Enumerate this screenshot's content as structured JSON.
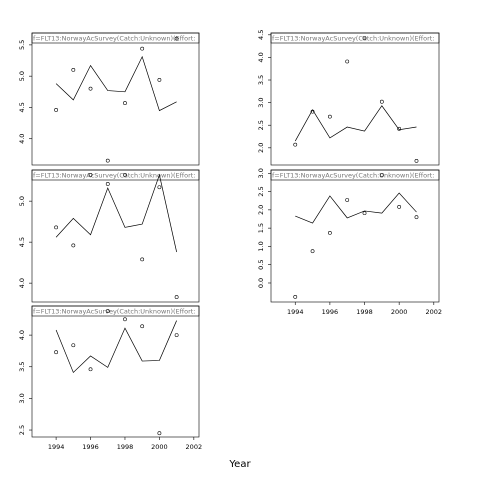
{
  "xlabel": "Year",
  "chart_data": [
    {
      "type": "line",
      "title": "f=FLT13:NorwayAcSurvey(Catch:Unknown)(Effort:",
      "x": [
        1994,
        1995,
        1996,
        1997,
        1998,
        1999,
        2000,
        2001
      ],
      "series": [
        {
          "style": "points",
          "color": "#000000",
          "values": [
            4.46,
            5.1,
            4.8,
            3.65,
            4.57,
            5.44,
            4.94,
            5.6
          ]
        },
        {
          "style": "line",
          "color": "#000000",
          "values": [
            4.88,
            4.62,
            5.17,
            4.77,
            4.75,
            5.31,
            4.45,
            4.59
          ]
        }
      ],
      "xlim": [
        1992.6,
        2002.3
      ],
      "ylim": [
        3.58,
        5.69
      ],
      "yticks": [
        {
          "value": 4,
          "label": "4.0"
        },
        4.5,
        {
          "value": 5,
          "label": "5.0"
        },
        5.5
      ]
    },
    {
      "type": "line",
      "title": "f=FLT13:NorwayAcSurvey(Catch:Unknown)(Effort:",
      "x": [
        1994,
        1995,
        1996,
        1997,
        1998,
        1999,
        2000,
        2001
      ],
      "series": [
        {
          "style": "points",
          "color": "#000000",
          "values": [
            2.07,
            2.8,
            2.69,
            3.91,
            4.43,
            3.02,
            2.42,
            1.71
          ]
        },
        {
          "style": "line",
          "color": "#000000",
          "values": [
            2.15,
            2.84,
            2.22,
            2.46,
            2.37,
            2.93,
            2.4,
            2.46
          ]
        }
      ],
      "xlim": [
        1992.6,
        2002.3
      ],
      "ylim": [
        1.62,
        4.54
      ],
      "yticks": [
        {
          "value": 2,
          "label": "2.0"
        },
        2.5,
        {
          "value": 3,
          "label": "3.0"
        },
        3.5,
        {
          "value": 4,
          "label": "4.0"
        },
        4.5
      ]
    },
    {
      "type": "line",
      "title": "f=FLT13:NorwayAcSurvey(Catch:Unknown)(Effort:",
      "x": [
        1994,
        1995,
        1996,
        1997,
        1998,
        1999,
        2000,
        2001
      ],
      "series": [
        {
          "style": "points",
          "color": "#000000",
          "values": [
            4.68,
            4.46,
            5.32,
            5.21,
            5.32,
            4.29,
            5.17,
            3.83
          ]
        },
        {
          "style": "line",
          "color": "#000000",
          "values": [
            4.56,
            4.79,
            4.59,
            5.16,
            4.68,
            4.72,
            5.32,
            4.38
          ]
        }
      ],
      "xlim": [
        1992.6,
        2002.3
      ],
      "ylim": [
        3.77,
        5.38
      ],
      "yticks": [
        {
          "value": 4,
          "label": "4.0"
        },
        4.5,
        {
          "value": 5,
          "label": "5.0"
        }
      ]
    },
    {
      "type": "line",
      "title": "f=FLT13:NorwayAcSurvey(Catch:Unknown)(Effort:",
      "x": [
        1994,
        1995,
        1996,
        1997,
        1998,
        1999,
        2000,
        2001
      ],
      "series": [
        {
          "style": "points",
          "color": "#000000",
          "values": [
            -0.38,
            0.87,
            1.37,
            2.27,
            1.91,
            2.95,
            2.08,
            1.8
          ]
        },
        {
          "style": "line",
          "color": "#000000",
          "values": [
            1.83,
            1.64,
            2.38,
            1.78,
            1.97,
            1.91,
            2.46,
            1.94
          ]
        }
      ],
      "xlim": [
        1992.6,
        2002.3
      ],
      "ylim": [
        -0.52,
        3.09
      ],
      "xticks": [
        1994,
        1996,
        1998,
        2000,
        2002
      ],
      "yticks": [
        {
          "value": 0,
          "label": "0.0"
        },
        0.5,
        {
          "value": 1,
          "label": "1.0"
        },
        1.5,
        {
          "value": 2,
          "label": "2.0"
        },
        2.5,
        {
          "value": 3,
          "label": "3.0"
        }
      ]
    },
    {
      "type": "line",
      "title": "f=FLT13:NorwayAcSurvey(Catch:Unknown)(Effort:",
      "x": [
        1994,
        1995,
        1996,
        1997,
        1998,
        1999,
        2000,
        2001
      ],
      "series": [
        {
          "style": "points",
          "color": "#000000",
          "values": [
            3.73,
            3.84,
            3.46,
            4.38,
            4.25,
            4.14,
            2.45,
            4.0
          ]
        },
        {
          "style": "line",
          "color": "#000000",
          "values": [
            4.08,
            3.41,
            3.67,
            3.49,
            4.11,
            3.59,
            3.6,
            4.23
          ]
        }
      ],
      "xlim": [
        1992.6,
        2002.3
      ],
      "ylim": [
        2.39,
        4.46
      ],
      "xticks": [
        1994,
        1996,
        1998,
        2000,
        2002
      ],
      "yticks": [
        2.5,
        {
          "value": 3,
          "label": "3.0"
        },
        3.5,
        {
          "value": 4,
          "label": "4.0"
        }
      ]
    }
  ]
}
